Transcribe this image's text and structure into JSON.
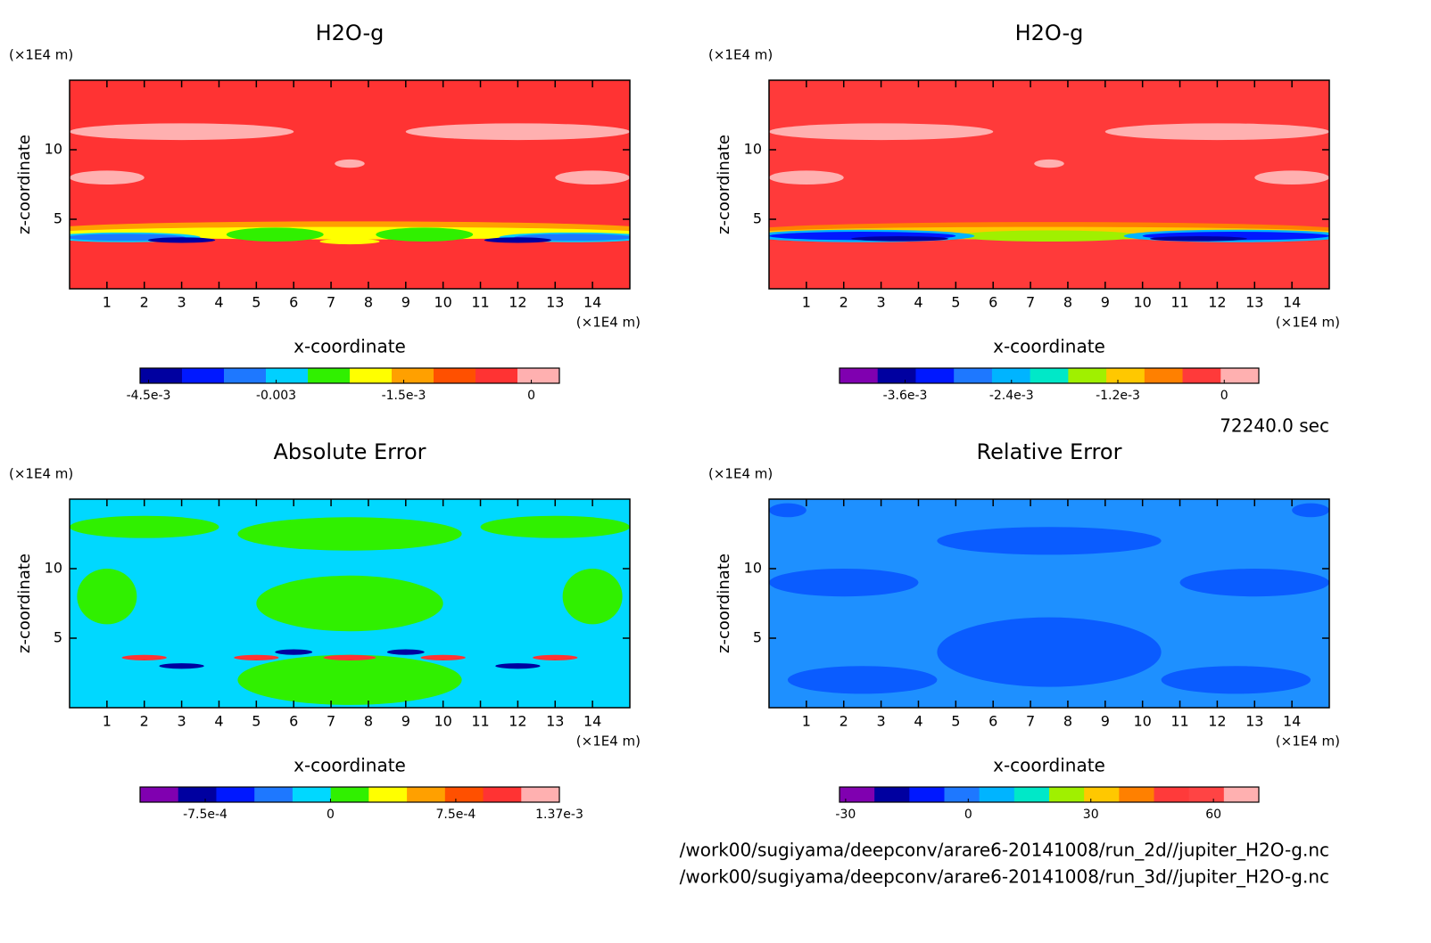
{
  "chart_data": [
    {
      "type": "contour",
      "title": "H2O-g",
      "xlabel": "x-coordinate",
      "ylabel": "z-coordinate",
      "xunit": "(×1E4 m)",
      "yunit": "(×1E4 m)",
      "xlim": [
        0,
        15
      ],
      "ylim": [
        0,
        15
      ],
      "xticks": [
        1,
        2,
        3,
        4,
        5,
        6,
        7,
        8,
        9,
        10,
        11,
        12,
        13,
        14
      ],
      "yticks": [
        5,
        10
      ],
      "colorbar": {
        "clim": [
          -0.0046,
          0.00033
        ],
        "colors": [
          "#0000a0",
          "#0018ff",
          "#1e78ff",
          "#00d0ff",
          "#30f000",
          "#ffff00",
          "#ffa000",
          "#ff5000",
          "#ff3333",
          "#ffb0b0"
        ],
        "ticks": [
          {
            "value": -0.0045,
            "label": "-4.5e-3"
          },
          -0.003,
          {
            "value": -0.0015,
            "label": "-1.5e-3"
          },
          0
        ]
      }
    },
    {
      "type": "contour",
      "title": "H2O-g",
      "xlabel": "x-coordinate",
      "ylabel": "z-coordinate",
      "xunit": "(×1E4 m)",
      "yunit": "(×1E4 m)",
      "xlim": [
        0,
        15
      ],
      "ylim": [
        0,
        15
      ],
      "xticks": [
        1,
        2,
        3,
        4,
        5,
        6,
        7,
        8,
        9,
        10,
        11,
        12,
        13,
        14
      ],
      "yticks": [
        5,
        10
      ],
      "colorbar": {
        "clim": [
          -0.00434,
          0.00039
        ],
        "colors": [
          "#8000b0",
          "#0000a0",
          "#0018ff",
          "#1e78ff",
          "#00b4ff",
          "#00e8c8",
          "#a0f000",
          "#ffc800",
          "#ff8000",
          "#ff3a3a",
          "#ffb0b0"
        ],
        "ticks": [
          {
            "value": -0.0036,
            "label": "-3.6e-3"
          },
          {
            "value": -0.0024,
            "label": "-2.4e-3"
          },
          {
            "value": -0.0012,
            "label": "-1.2e-3"
          },
          0
        ]
      }
    },
    {
      "type": "contour",
      "title": "Absolute Error",
      "xlabel": "x-coordinate",
      "ylabel": "z-coordinate",
      "xunit": "(×1E4 m)",
      "yunit": "(×1E4 m)",
      "xlim": [
        0,
        15
      ],
      "ylim": [
        0,
        15
      ],
      "xticks": [
        1,
        2,
        3,
        4,
        5,
        6,
        7,
        8,
        9,
        10,
        11,
        12,
        13,
        14
      ],
      "yticks": [
        5,
        10
      ],
      "colorbar": {
        "clim": [
          -0.00114,
          0.00137
        ],
        "colors": [
          "#8000b0",
          "#0000a0",
          "#0018ff",
          "#1e78ff",
          "#00d8ff",
          "#30f000",
          "#ffff00",
          "#ffa000",
          "#ff5000",
          "#ff3333",
          "#ffb0b0"
        ],
        "ticks": [
          {
            "value": -0.00075,
            "label": "-7.5e-4"
          },
          0,
          {
            "value": 0.00075,
            "label": "7.5e-4"
          },
          {
            "value": 0.00137,
            "label": "1.37e-3"
          }
        ]
      }
    },
    {
      "type": "contour",
      "title": "Relative Error",
      "xlabel": "x-coordinate",
      "ylabel": "z-coordinate",
      "xunit": "(×1E4 m)",
      "yunit": "(×1E4 m)",
      "xlim": [
        0,
        15
      ],
      "ylim": [
        0,
        15
      ],
      "xticks": [
        1,
        2,
        3,
        4,
        5,
        6,
        7,
        8,
        9,
        10,
        11,
        12,
        13,
        14
      ],
      "yticks": [
        5,
        10
      ],
      "colorbar": {
        "clim": [
          -31.5,
          71.1
        ],
        "colors": [
          "#8000b0",
          "#0000a0",
          "#0018ff",
          "#1e78ff",
          "#00b4ff",
          "#00e8c8",
          "#a0f000",
          "#ffc800",
          "#ff8000",
          "#ff3a3a",
          "#ff4444",
          "#ffb0b0"
        ],
        "ticks": [
          -30,
          0,
          30,
          60
        ]
      }
    }
  ],
  "annotations": {
    "time": "72240.0 sec",
    "files": [
      "/work00/sugiyama/deepconv/arare6-20141008/run_2d//jupiter_H2O-g.nc",
      "/work00/sugiyama/deepconv/arare6-20141008/run_3d//jupiter_H2O-g.nc"
    ]
  }
}
